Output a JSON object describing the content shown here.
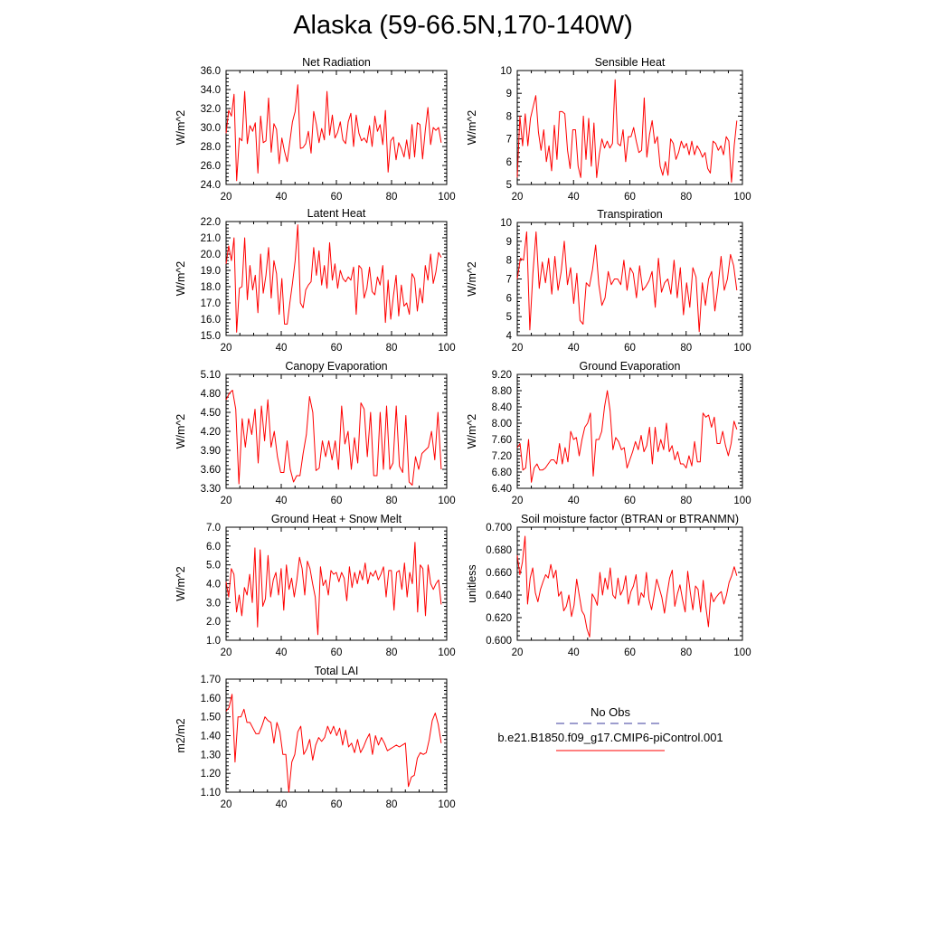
{
  "page": {
    "title": "Alaska (59-66.5N,170-140W)"
  },
  "legend": {
    "items": [
      {
        "label": "No Obs",
        "color": "#3b3b9c",
        "dash": true
      },
      {
        "label": "b.e21.B1850.f09_g17.CMIP6-piControl.001",
        "color": "#ff0000",
        "dash": false
      }
    ]
  },
  "chart_data": [
    {
      "type": "line",
      "title": "Net Radiation",
      "ylabel": "W/m^2",
      "xlim": [
        20,
        100
      ],
      "ylim": [
        24,
        36
      ],
      "xticks": [
        20,
        40,
        60,
        80,
        100
      ],
      "yticks": [
        24,
        26,
        28,
        30,
        32,
        34,
        36
      ],
      "ytick_labels": [
        "24.0",
        "26.0",
        "28.0",
        "30.0",
        "32.0",
        "34.0",
        "36.0"
      ],
      "color": "#ff0000",
      "x_start": 20,
      "values": [
        29.4,
        31.8,
        31.2,
        33.5,
        24.4,
        28.9,
        28.6,
        33.8,
        28.3,
        30.2,
        29.6,
        30.5,
        25.2,
        31.2,
        28.4,
        28.6,
        33.1,
        27.4,
        30.4,
        29.8,
        26.2,
        28.9,
        27.5,
        26.4,
        28.5,
        30.6,
        31.7,
        34.5,
        27.8,
        27.9,
        28.3,
        29.6,
        27.3,
        31.7,
        30.3,
        28.4,
        29.9,
        28.7,
        33.8,
        29.2,
        31.3,
        28.9,
        29.5,
        30.6,
        28.7,
        28.3,
        30.6,
        31.5,
        28.0,
        31.3,
        29.4,
        28.6,
        28.9,
        28.4,
        30.2,
        28.0,
        31.2,
        29.6,
        30.3,
        28.2,
        31.8,
        25.3,
        28.6,
        29.0,
        26.6,
        28.4,
        27.8,
        26.9,
        28.7,
        26.7,
        30.3,
        26.9,
        30.5,
        30.3,
        26.7,
        29.7,
        32.1,
        28.2,
        30.0,
        29.7,
        30.0,
        28.4
      ]
    },
    {
      "type": "line",
      "title": "Sensible Heat",
      "ylabel": "W/m^2",
      "xlim": [
        20,
        100
      ],
      "ylim": [
        5,
        10
      ],
      "xticks": [
        20,
        40,
        60,
        80,
        100
      ],
      "yticks": [
        5,
        6,
        7,
        8,
        9,
        10
      ],
      "ytick_labels": [
        "5",
        "6",
        "7",
        "8",
        "9",
        "10"
      ],
      "color": "#ff0000",
      "x_start": 20,
      "values": [
        5.3,
        8.0,
        6.7,
        8.1,
        6.7,
        7.9,
        8.4,
        8.9,
        7.3,
        6.5,
        7.4,
        6.0,
        6.7,
        5.6,
        7.6,
        6.1,
        8.2,
        8.2,
        8.1,
        6.5,
        5.7,
        7.4,
        7.4,
        5.8,
        5.3,
        8.0,
        6.1,
        7.9,
        5.8,
        7.7,
        5.3,
        6.3,
        7.0,
        6.6,
        6.9,
        6.6,
        6.8,
        9.6,
        6.8,
        6.7,
        7.4,
        6.0,
        7.1,
        7.1,
        7.5,
        6.9,
        6.4,
        6.5,
        8.8,
        6.2,
        7.2,
        7.8,
        6.8,
        7.1,
        5.8,
        5.4,
        6.0,
        5.4,
        7.0,
        6.8,
        6.1,
        6.4,
        6.9,
        6.6,
        6.8,
        6.3,
        6.9,
        6.3,
        6.7,
        6.5,
        6.2,
        6.4,
        5.7,
        5.5,
        6.9,
        6.8,
        6.5,
        6.7,
        6.3,
        7.1,
        6.9,
        5.1,
        6.7,
        7.8
      ]
    },
    {
      "type": "line",
      "title": "Latent Heat",
      "ylabel": "W/m^2",
      "xlim": [
        20,
        100
      ],
      "ylim": [
        15,
        22
      ],
      "xticks": [
        20,
        40,
        60,
        80,
        100
      ],
      "yticks": [
        15,
        16,
        17,
        18,
        19,
        20,
        21,
        22
      ],
      "ytick_labels": [
        "15.0",
        "16.0",
        "17.0",
        "18.0",
        "19.0",
        "20.0",
        "21.0",
        "22.0"
      ],
      "color": "#ff0000",
      "x_start": 20,
      "values": [
        19.4,
        20.5,
        19.6,
        21.0,
        15.2,
        17.9,
        18.0,
        21.0,
        17.2,
        19.3,
        17.8,
        18.7,
        16.4,
        20.0,
        17.6,
        18.7,
        20.4,
        17.3,
        19.6,
        18.8,
        16.3,
        18.5,
        15.7,
        15.7,
        17.0,
        18.2,
        19.6,
        21.8,
        17.0,
        16.7,
        17.8,
        18.1,
        18.3,
        20.4,
        18.7,
        20.2,
        18.1,
        19.3,
        17.9,
        20.7,
        18.4,
        19.4,
        17.9,
        19.0,
        18.5,
        18.3,
        18.6,
        18.4,
        19.2,
        16.3,
        19.3,
        19.1,
        17.3,
        17.9,
        19.2,
        17.7,
        17.5,
        18.6,
        18.1,
        19.3,
        15.8,
        18.4,
        16.0,
        17.4,
        18.7,
        16.2,
        18.1,
        16.8,
        17.0,
        16.3,
        18.8,
        18.5,
        16.5,
        17.9,
        17.0,
        19.3,
        18.4,
        20.0,
        18.2,
        18.9,
        20.1,
        19.8
      ]
    },
    {
      "type": "line",
      "title": "Transpiration",
      "ylabel": "W/m^2",
      "xlim": [
        20,
        100
      ],
      "ylim": [
        4,
        10
      ],
      "xticks": [
        20,
        40,
        60,
        80,
        100
      ],
      "yticks": [
        4,
        5,
        6,
        7,
        8,
        9,
        10
      ],
      "ytick_labels": [
        "4",
        "5",
        "6",
        "7",
        "8",
        "9",
        "10"
      ],
      "color": "#ff0000",
      "x_start": 20,
      "values": [
        7.0,
        8.1,
        8.0,
        9.5,
        4.3,
        7.3,
        9.5,
        6.5,
        7.9,
        6.8,
        8.1,
        6.2,
        8.2,
        6.4,
        7.4,
        9.0,
        6.7,
        7.6,
        5.7,
        7.3,
        4.8,
        4.6,
        6.8,
        6.6,
        7.5,
        8.8,
        6.7,
        5.6,
        6.0,
        7.4,
        6.7,
        7.0,
        7.0,
        6.7,
        8.0,
        6.4,
        7.6,
        7.3,
        6.0,
        7.7,
        6.4,
        6.6,
        6.9,
        7.4,
        5.5,
        8.1,
        6.3,
        6.8,
        7.0,
        6.2,
        8.0,
        6.0,
        7.6,
        5.1,
        6.8,
        5.5,
        7.6,
        7.1,
        4.2,
        6.8,
        5.6,
        7.0,
        7.4,
        5.3,
        6.6,
        8.2,
        6.4,
        7.0,
        8.3,
        7.7,
        6.4
      ]
    },
    {
      "type": "line",
      "title": "Canopy Evaporation",
      "ylabel": "W/m^2",
      "xlim": [
        20,
        100
      ],
      "ylim": [
        3.3,
        5.1
      ],
      "xticks": [
        20,
        40,
        60,
        80,
        100
      ],
      "yticks": [
        3.3,
        3.6,
        3.9,
        4.2,
        4.5,
        4.8,
        5.1
      ],
      "ytick_labels": [
        "3.30",
        "3.60",
        "3.90",
        "4.20",
        "4.50",
        "4.80",
        "5.10"
      ],
      "color": "#ff0000",
      "x_start": 20,
      "values": [
        4.7,
        4.8,
        4.85,
        4.55,
        3.37,
        4.4,
        3.95,
        4.4,
        4.15,
        4.55,
        3.7,
        4.6,
        4.05,
        4.7,
        3.95,
        4.2,
        3.8,
        3.55,
        3.55,
        4.05,
        3.6,
        3.4,
        3.5,
        3.5,
        3.85,
        4.15,
        4.75,
        4.5,
        3.58,
        3.62,
        4.05,
        3.8,
        4.05,
        3.75,
        4.05,
        3.6,
        4.6,
        4.0,
        4.2,
        3.6,
        4.1,
        3.7,
        4.65,
        4.55,
        3.8,
        4.5,
        3.5,
        3.5,
        4.5,
        3.6,
        4.6,
        3.6,
        3.7,
        4.6,
        3.65,
        3.55,
        4.45,
        3.4,
        3.35,
        3.8,
        3.6,
        3.85,
        3.9,
        3.95,
        4.2,
        3.75,
        4.5,
        3.6
      ]
    },
    {
      "type": "line",
      "title": "Ground Evaporation",
      "ylabel": "W/m^2",
      "xlim": [
        20,
        100
      ],
      "ylim": [
        6.4,
        9.2
      ],
      "xticks": [
        20,
        40,
        60,
        80,
        100
      ],
      "yticks": [
        6.4,
        6.8,
        7.2,
        7.6,
        8.0,
        8.4,
        8.8,
        9.2
      ],
      "ytick_labels": [
        "6.40",
        "6.80",
        "7.20",
        "7.60",
        "8.00",
        "8.40",
        "8.80",
        "9.20"
      ],
      "color": "#ff0000",
      "x_start": 20,
      "values": [
        7.4,
        7.5,
        6.85,
        6.9,
        7.6,
        6.55,
        6.9,
        7.0,
        6.85,
        6.85,
        6.9,
        7.0,
        7.1,
        7.1,
        7.0,
        7.5,
        7.0,
        7.4,
        7.05,
        7.8,
        7.6,
        7.65,
        7.2,
        7.6,
        7.9,
        8.0,
        8.25,
        6.7,
        7.6,
        7.6,
        7.8,
        8.4,
        8.8,
        8.3,
        7.35,
        7.65,
        7.55,
        7.35,
        7.4,
        6.9,
        7.1,
        7.3,
        7.55,
        7.35,
        7.7,
        7.3,
        7.45,
        7.9,
        7.0,
        7.9,
        7.3,
        7.6,
        7.35,
        8.0,
        7.3,
        7.45,
        7.1,
        7.3,
        7.0,
        7.0,
        6.9,
        7.2,
        6.95,
        7.55,
        7.05,
        7.05,
        8.25,
        8.15,
        8.2,
        7.9,
        8.15,
        7.5,
        7.5,
        7.8,
        7.45,
        7.2,
        7.5,
        8.05,
        7.85
      ]
    },
    {
      "type": "line",
      "title": "Ground Heat + Snow Melt",
      "ylabel": "W/m^2",
      "xlim": [
        20,
        100
      ],
      "ylim": [
        1,
        7
      ],
      "xticks": [
        20,
        40,
        60,
        80,
        100
      ],
      "yticks": [
        1,
        2,
        3,
        4,
        5,
        6,
        7
      ],
      "ytick_labels": [
        "1.0",
        "2.0",
        "3.0",
        "4.0",
        "5.0",
        "6.0",
        "7.0"
      ],
      "color": "#ff0000",
      "x_start": 20,
      "values": [
        4.1,
        3.3,
        4.8,
        4.5,
        2.5,
        3.4,
        2.3,
        3.8,
        3.4,
        4.5,
        3.0,
        5.9,
        1.7,
        5.8,
        2.8,
        3.2,
        5.5,
        3.3,
        4.2,
        4.6,
        3.4,
        4.8,
        2.6,
        5.0,
        3.7,
        4.3,
        3.3,
        4.2,
        5.4,
        4.8,
        3.4,
        5.2,
        4.8,
        4.0,
        3.3,
        1.3,
        4.9,
        3.9,
        4.2,
        3.4,
        4.7,
        4.5,
        4.6,
        4.1,
        4.6,
        4.3,
        3.1,
        4.9,
        3.8,
        4.6,
        4.0,
        4.7,
        4.2,
        5.1,
        4.0,
        4.6,
        4.4,
        4.7,
        4.2,
        4.5,
        4.9,
        3.3,
        4.7,
        4.7,
        2.6,
        4.6,
        4.7,
        3.7,
        5.1,
        3.3,
        4.6,
        4.0,
        6.2,
        2.5,
        5.0,
        4.8,
        2.3,
        5.0,
        4.0,
        3.7,
        4.0,
        4.2,
        2.9
      ]
    },
    {
      "type": "line",
      "title": "Soil moisture factor (BTRAN or BTRANMN)",
      "ylabel": "unitless",
      "xlim": [
        20,
        100
      ],
      "ylim": [
        0.6,
        0.7
      ],
      "xticks": [
        20,
        40,
        60,
        80,
        100
      ],
      "yticks": [
        0.6,
        0.62,
        0.64,
        0.66,
        0.68,
        0.7
      ],
      "ytick_labels": [
        "0.600",
        "0.620",
        "0.640",
        "0.660",
        "0.680",
        "0.700"
      ],
      "color": "#ff0000",
      "x_start": 20,
      "values": [
        0.675,
        0.658,
        0.669,
        0.692,
        0.632,
        0.655,
        0.664,
        0.642,
        0.634,
        0.645,
        0.652,
        0.658,
        0.655,
        0.667,
        0.655,
        0.662,
        0.639,
        0.643,
        0.626,
        0.63,
        0.64,
        0.621,
        0.631,
        0.654,
        0.64,
        0.626,
        0.622,
        0.61,
        0.603,
        0.641,
        0.637,
        0.631,
        0.66,
        0.64,
        0.655,
        0.645,
        0.664,
        0.64,
        0.637,
        0.655,
        0.64,
        0.645,
        0.657,
        0.632,
        0.643,
        0.648,
        0.658,
        0.631,
        0.642,
        0.638,
        0.66,
        0.636,
        0.627,
        0.64,
        0.654,
        0.646,
        0.638,
        0.624,
        0.641,
        0.655,
        0.662,
        0.63,
        0.641,
        0.649,
        0.636,
        0.625,
        0.661,
        0.642,
        0.627,
        0.648,
        0.645,
        0.625,
        0.653,
        0.63,
        0.612,
        0.642,
        0.634,
        0.638,
        0.641,
        0.643,
        0.632,
        0.64,
        0.651,
        0.657,
        0.665,
        0.657
      ]
    },
    {
      "type": "line",
      "title": "Total LAI",
      "ylabel": "m2/m2",
      "xlim": [
        20,
        100
      ],
      "ylim": [
        1.1,
        1.7
      ],
      "xticks": [
        20,
        40,
        60,
        80,
        100
      ],
      "yticks": [
        1.1,
        1.2,
        1.3,
        1.4,
        1.5,
        1.6,
        1.7
      ],
      "ytick_labels": [
        "1.10",
        "1.20",
        "1.30",
        "1.40",
        "1.50",
        "1.60",
        "1.70"
      ],
      "color": "#ff0000",
      "x_start": 20,
      "values": [
        1.53,
        1.55,
        1.62,
        1.26,
        1.5,
        1.5,
        1.54,
        1.47,
        1.47,
        1.44,
        1.41,
        1.41,
        1.45,
        1.5,
        1.48,
        1.47,
        1.36,
        1.47,
        1.42,
        1.3,
        1.3,
        1.1,
        1.26,
        1.3,
        1.42,
        1.45,
        1.3,
        1.33,
        1.38,
        1.27,
        1.35,
        1.39,
        1.37,
        1.39,
        1.45,
        1.41,
        1.45,
        1.4,
        1.44,
        1.35,
        1.43,
        1.34,
        1.36,
        1.31,
        1.38,
        1.31,
        1.34,
        1.38,
        1.41,
        1.3,
        1.4,
        1.35,
        1.39,
        1.36,
        1.32,
        1.33,
        1.34,
        1.35,
        1.34,
        1.35,
        1.36,
        1.13,
        1.18,
        1.19,
        1.28,
        1.31,
        1.3,
        1.31,
        1.38,
        1.48,
        1.52,
        1.46,
        1.36
      ]
    }
  ]
}
